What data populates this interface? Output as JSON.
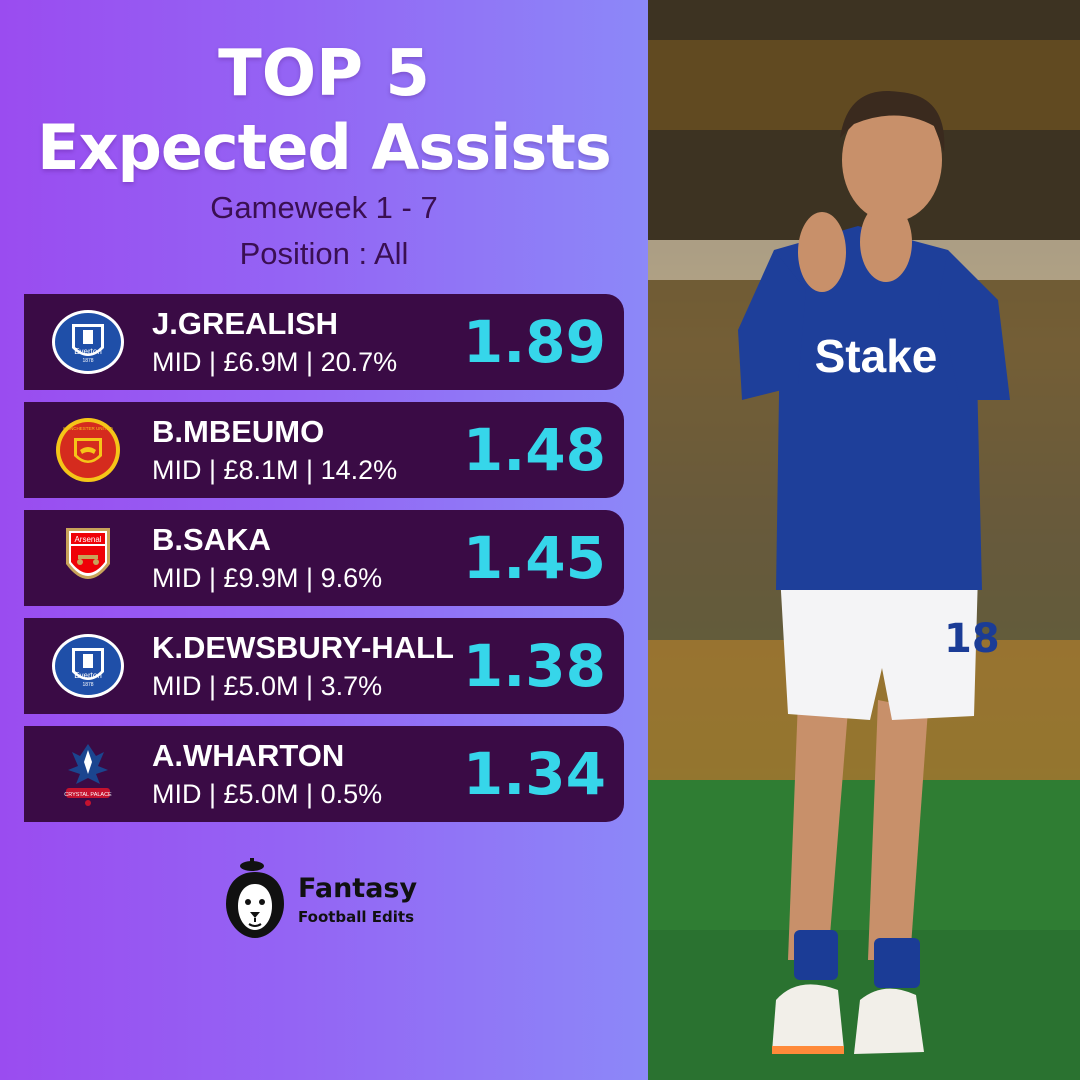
{
  "title": {
    "line1": "TOP 5",
    "line2": "Expected Assists"
  },
  "subtitle": {
    "gameweek": "Gameweek 1 - 7",
    "position": "Position : All"
  },
  "players": [
    {
      "rank": 1,
      "name": "J.GREALISH",
      "info": "MID | £6.9M | 20.7%",
      "xa": "1.89",
      "club_icon": "everton-crest-icon"
    },
    {
      "rank": 2,
      "name": "B.MBEUMO",
      "info": "MID | £8.1M | 14.2%",
      "xa": "1.48",
      "club_icon": "manchester-united-crest-icon"
    },
    {
      "rank": 3,
      "name": "B.SAKA",
      "info": "MID | £9.9M | 9.6%",
      "xa": "1.45",
      "club_icon": "arsenal-crest-icon"
    },
    {
      "rank": 4,
      "name": "K.DEWSBURY-HALL",
      "info": "MID | £5.0M | 3.7%",
      "xa": "1.38",
      "club_icon": "everton-crest-icon"
    },
    {
      "rank": 5,
      "name": "A.WHARTON",
      "info": "MID | £5.0M | 0.5%",
      "xa": "1.34",
      "club_icon": "crystal-palace-crest-icon"
    }
  ],
  "crest_text": {
    "everton": "Everton",
    "everton_year": "1878",
    "manutd": "MANCHESTER UNITED",
    "arsenal": "Arsenal",
    "palace": "CRYSTAL PALACE"
  },
  "brand": {
    "name": "Fantasy",
    "tagline": "Football Edits",
    "icon": "lion-logo-icon"
  },
  "photo": {
    "description_icon": "player-photo",
    "shirt_sponsor": "Stake",
    "shirt_number": "18"
  },
  "colors": {
    "panel_gradient_start": "#9a4cf0",
    "panel_gradient_end": "#8c88f8",
    "row_background": "#3a0b45",
    "value_color": "#36d6ea",
    "subtitle_color": "#3a0f52",
    "title_color": "#ffffff"
  }
}
